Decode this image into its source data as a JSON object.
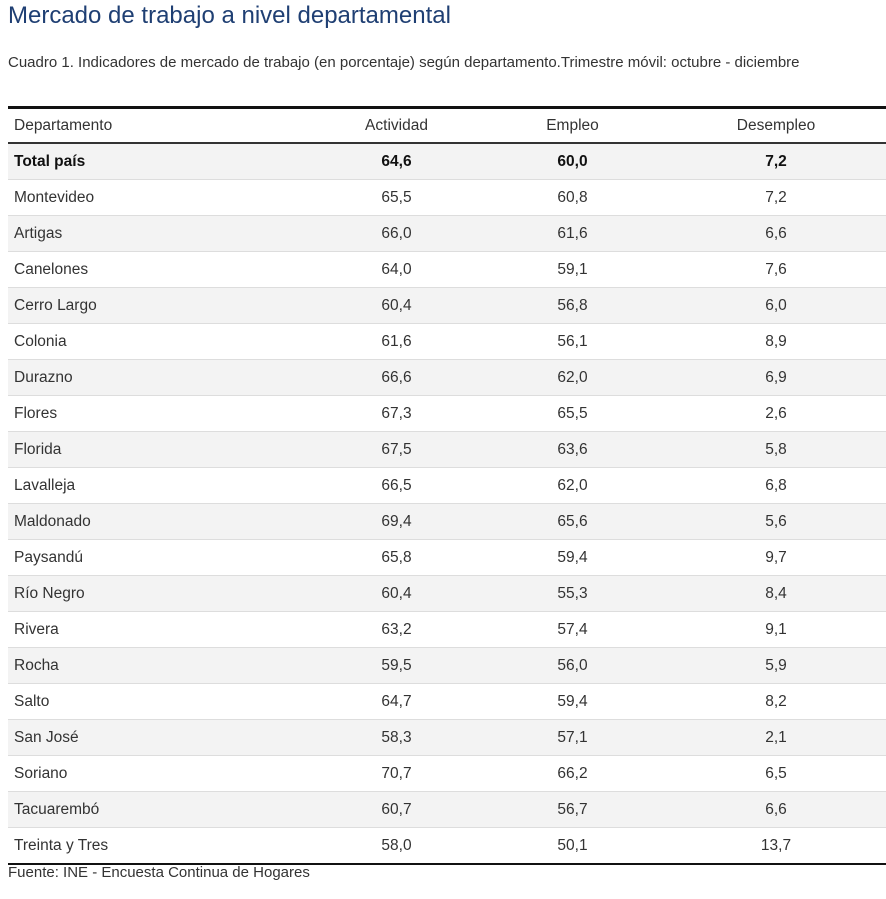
{
  "title": "Mercado de trabajo a nivel departamental",
  "caption": "Cuadro 1. Indicadores de mercado de trabajo (en porcentaje) según departamento.Trimestre móvil: octubre - diciembre",
  "table": {
    "headers": [
      "Departamento",
      "Actividad",
      "Empleo",
      "Desempleo"
    ],
    "rows": [
      [
        "Total país",
        "64,6",
        "60,0",
        "7,2"
      ],
      [
        "Montevideo",
        "65,5",
        "60,8",
        "7,2"
      ],
      [
        "Artigas",
        "66,0",
        "61,6",
        "6,6"
      ],
      [
        "Canelones",
        "64,0",
        "59,1",
        "7,6"
      ],
      [
        "Cerro Largo",
        "60,4",
        "56,8",
        "6,0"
      ],
      [
        "Colonia",
        "61,6",
        "56,1",
        "8,9"
      ],
      [
        "Durazno",
        "66,6",
        "62,0",
        "6,9"
      ],
      [
        "Flores",
        "67,3",
        "65,5",
        "2,6"
      ],
      [
        "Florida",
        "67,5",
        "63,6",
        "5,8"
      ],
      [
        "Lavalleja",
        "66,5",
        "62,0",
        "6,8"
      ],
      [
        "Maldonado",
        "69,4",
        "65,6",
        "5,6"
      ],
      [
        "Paysandú",
        "65,8",
        "59,4",
        "9,7"
      ],
      [
        "Río Negro",
        "60,4",
        "55,3",
        "8,4"
      ],
      [
        "Rivera",
        "63,2",
        "57,4",
        "9,1"
      ],
      [
        "Rocha",
        "59,5",
        "56,0",
        "5,9"
      ],
      [
        "Salto",
        "64,7",
        "59,4",
        "8,2"
      ],
      [
        "San José",
        "58,3",
        "57,1",
        "2,1"
      ],
      [
        "Soriano",
        "70,7",
        "66,2",
        "6,5"
      ],
      [
        "Tacuarembó",
        "60,7",
        "56,7",
        "6,6"
      ],
      [
        "Treinta y Tres",
        "58,0",
        "50,1",
        "13,7"
      ]
    ]
  },
  "source": "Fuente: INE - Encuesta Continua de Hogares",
  "colors": {
    "title": "#1f3f73",
    "stripe": "#f3f3f3"
  }
}
